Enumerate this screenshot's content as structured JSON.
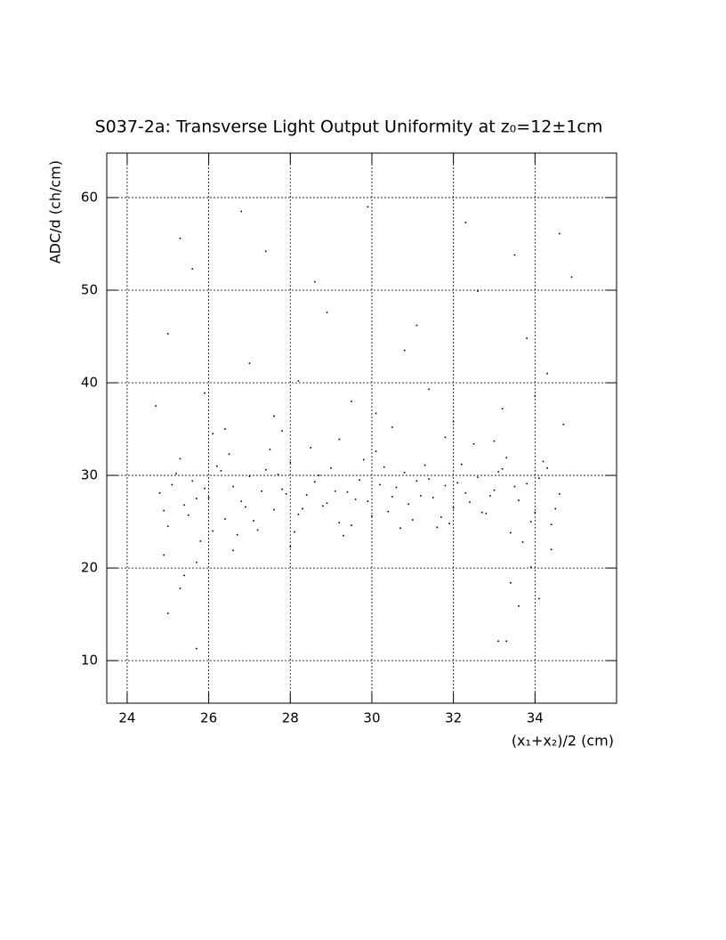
{
  "chart_data": {
    "type": "scatter",
    "title": "S037-2a: Transverse Light Output Uniformity at z₀=12±1cm",
    "x_label": "(x₁+x₂)/2 (cm)",
    "y_label": "ADC/d (ch/cm)",
    "xlim": [
      23.5,
      36.0
    ],
    "ylim": [
      5.4,
      64.8
    ],
    "xticks": [
      24,
      26,
      28,
      30,
      32,
      34
    ],
    "yticks": [
      10,
      20,
      30,
      40,
      50,
      60
    ],
    "grid": true,
    "color": "#000000",
    "x": [
      24.8,
      25.0,
      25.2,
      25.4,
      25.6,
      25.8,
      26.0,
      26.2,
      26.4,
      26.6,
      26.8,
      27.0,
      27.2,
      27.4,
      27.6,
      27.8,
      28.0,
      28.2,
      28.4,
      28.6,
      28.8,
      29.0,
      29.2,
      29.4,
      29.6,
      29.8,
      30.0,
      30.2,
      30.4,
      30.6,
      30.8,
      31.0,
      31.2,
      31.4,
      31.6,
      31.8,
      32.0,
      32.2,
      32.4,
      32.6,
      32.8,
      33.0,
      33.2,
      33.4,
      33.6,
      33.8,
      34.0,
      34.2,
      34.4,
      34.6,
      24.9,
      25.3,
      25.7,
      26.1,
      26.5,
      26.9,
      27.3,
      27.7,
      28.1,
      28.5,
      28.9,
      29.3,
      29.7,
      30.1,
      30.5,
      30.9,
      31.3,
      31.7,
      32.1,
      32.5,
      32.9,
      33.3,
      33.7,
      34.1,
      34.5,
      25.1,
      25.5,
      25.9,
      26.3,
      26.7,
      27.1,
      27.5,
      27.9,
      28.3,
      28.7,
      29.1,
      29.5,
      29.9,
      30.3,
      30.7,
      31.1,
      31.5,
      31.9,
      32.3,
      32.7,
      33.1,
      33.5,
      33.9,
      34.3,
      34.7,
      24.7,
      25.0,
      25.3,
      25.9,
      26.4,
      27.0,
      27.6,
      28.2,
      28.9,
      29.5,
      30.1,
      30.8,
      31.4,
      32.0,
      32.6,
      33.2,
      33.8,
      34.3,
      34.6,
      34.9,
      25.6,
      26.8,
      27.4,
      28.6,
      29.9,
      31.1,
      32.3,
      33.5,
      34.0,
      26.1,
      27.8,
      29.2,
      30.5,
      31.8,
      33.0,
      24.9,
      25.7,
      26.6,
      28.0,
      34.4,
      25.0,
      25.3,
      25.4,
      25.7,
      33.1,
      33.4,
      33.6,
      33.9,
      34.1,
      33.3
    ],
    "y": [
      28.1,
      24.5,
      30.2,
      26.8,
      29.4,
      22.9,
      27.6,
      31.0,
      25.3,
      28.8,
      27.2,
      29.9,
      24.1,
      30.6,
      26.3,
      28.5,
      31.4,
      25.8,
      27.9,
      29.3,
      26.7,
      30.8,
      24.9,
      28.2,
      27.4,
      31.7,
      25.6,
      29.0,
      26.1,
      28.7,
      30.3,
      25.2,
      27.8,
      29.6,
      24.4,
      28.9,
      26.5,
      31.2,
      27.1,
      29.8,
      25.9,
      28.4,
      30.7,
      23.8,
      27.3,
      29.1,
      26.0,
      31.5,
      24.7,
      28.0,
      26.2,
      31.8,
      27.5,
      24.0,
      32.3,
      26.6,
      28.3,
      30.1,
      23.9,
      33.0,
      27.0,
      23.5,
      29.5,
      32.6,
      27.7,
      26.9,
      31.1,
      25.5,
      29.2,
      33.4,
      27.8,
      31.9,
      22.8,
      29.7,
      26.4,
      29.0,
      25.7,
      28.6,
      30.5,
      23.6,
      25.1,
      32.8,
      28.0,
      26.4,
      30.0,
      28.3,
      24.6,
      27.2,
      30.9,
      24.3,
      29.4,
      27.6,
      24.8,
      28.1,
      26.0,
      30.4,
      28.8,
      25.0,
      30.8,
      35.5,
      37.5,
      45.3,
      55.6,
      38.9,
      35.0,
      42.1,
      36.4,
      40.2,
      47.6,
      38.0,
      36.7,
      43.5,
      39.3,
      35.8,
      49.9,
      37.2,
      44.8,
      41.0,
      56.1,
      51.4,
      52.3,
      58.5,
      54.2,
      50.9,
      59.0,
      46.2,
      57.3,
      53.8,
      38.6,
      34.5,
      34.8,
      33.9,
      35.2,
      34.1,
      33.7,
      21.4,
      20.6,
      21.9,
      22.3,
      22.0,
      15.1,
      17.8,
      19.2,
      11.3,
      12.1,
      18.4,
      15.9,
      20.1,
      16.7,
      12.1
    ]
  }
}
